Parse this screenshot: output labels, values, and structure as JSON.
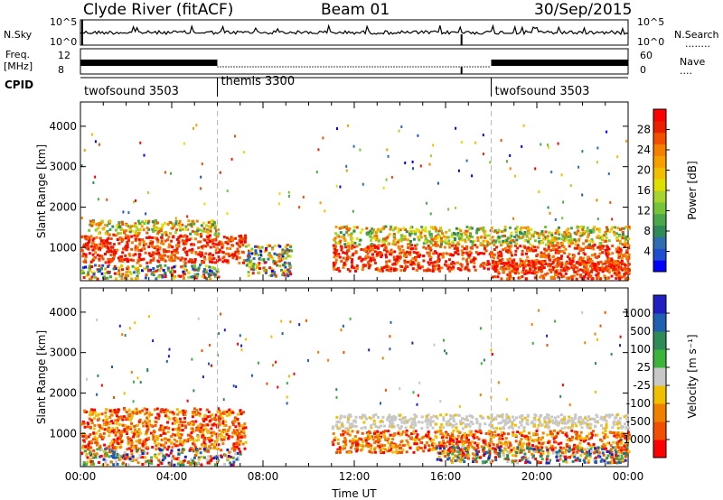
{
  "header": {
    "station": "Clyde River (fitACF)",
    "beam": "Beam 01",
    "date": "30/Sep/2015"
  },
  "strips": {
    "nsky": {
      "label": "N.Sky",
      "ticks_left": [
        "10^5",
        "10^0"
      ],
      "ticks_right": [
        "10^5",
        "10^0"
      ],
      "right_label": "N.Search",
      "right_line": "........"
    },
    "freq": {
      "label_top": "Freq.",
      "label_unit": "[MHz]",
      "ticks_left": [
        "12",
        "8"
      ],
      "ticks_right": [
        "60",
        "0"
      ],
      "right_label": "Nave",
      "right_line": "...."
    },
    "cpid": {
      "label": "CPID",
      "modes": [
        {
          "name": "twofsound 3503",
          "start_h": 0
        },
        {
          "name": "themis 3300",
          "start_h": 6
        },
        {
          "name": "twofsound 3503",
          "start_h": 18
        }
      ]
    }
  },
  "chart_data": [
    {
      "type": "heatmap",
      "title": "",
      "ylabel": "Slant Range [km]",
      "xlabel": "",
      "ylim": [
        180,
        4600
      ],
      "xlim": [
        0,
        24
      ],
      "yticks": [
        "1000",
        "2000",
        "3000",
        "4000"
      ],
      "mode_change_lines_h": [
        6,
        18
      ],
      "colorbar": {
        "label": "Power [dB]",
        "ticks": [
          "4",
          "8",
          "12",
          "16",
          "20",
          "24",
          "28"
        ],
        "colors": [
          "#0000ff",
          "#1f4fd0",
          "#2f6db0",
          "#2e8b57",
          "#4aa84a",
          "#77c43b",
          "#a8d432",
          "#e0e000",
          "#f0c000",
          "#f5a000",
          "#f57f00",
          "#f05000",
          "#e82000",
          "#ff0000"
        ]
      },
      "scatter_bands": [
        {
          "h0": 0.0,
          "h1": 7.2,
          "r0": 650,
          "r1": 1350,
          "value": "strong"
        },
        {
          "h0": 0.3,
          "h1": 6.0,
          "r0": 1350,
          "r1": 1700,
          "value": "medium"
        },
        {
          "h0": 0.0,
          "h1": 6.0,
          "r0": 250,
          "r1": 600,
          "value": "mixed"
        },
        {
          "h0": 7.2,
          "h1": 9.2,
          "r0": 300,
          "r1": 1100,
          "value": "mixed"
        },
        {
          "h0": 11.0,
          "h1": 24.0,
          "r0": 450,
          "r1": 1100,
          "value": "strong"
        },
        {
          "h0": 11.0,
          "h1": 24.0,
          "r0": 1100,
          "r1": 1550,
          "value": "medium"
        },
        {
          "h0": 18.0,
          "h1": 24.0,
          "r0": 250,
          "r1": 700,
          "value": "strong"
        }
      ]
    },
    {
      "type": "heatmap",
      "title": "",
      "ylabel": "Slant Range [km]",
      "xlabel": "Time UT",
      "ylim": [
        180,
        4600
      ],
      "xlim": [
        0,
        24
      ],
      "yticks": [
        "1000",
        "2000",
        "3000",
        "4000"
      ],
      "xticks": [
        "00:00",
        "04:00",
        "08:00",
        "12:00",
        "16:00",
        "20:00",
        "00:00"
      ],
      "mode_change_lines_h": [
        6,
        18
      ],
      "colorbar": {
        "label": "Velocity [m s⁻¹]",
        "ticks": [
          "1000",
          "500",
          "100",
          "25",
          "-25",
          "-100",
          "-500",
          "-1000"
        ],
        "colors": [
          "#2020c0",
          "#2060b0",
          "#2e8b57",
          "#3cb43c",
          "#c8c8c8",
          "#f0c000",
          "#f08000",
          "#f05000",
          "#ff0000"
        ]
      },
      "scatter_bands": [
        {
          "h0": 0.0,
          "h1": 7.2,
          "r0": 650,
          "r1": 1650,
          "value": "negative"
        },
        {
          "h0": 0.0,
          "h1": 7.0,
          "r0": 250,
          "r1": 650,
          "value": "mixed"
        },
        {
          "h0": 11.0,
          "h1": 24.0,
          "r0": 1150,
          "r1": 1500,
          "value": "near-zero"
        },
        {
          "h0": 11.0,
          "h1": 24.0,
          "r0": 550,
          "r1": 1100,
          "value": "negative"
        },
        {
          "h0": 15.5,
          "h1": 24.0,
          "r0": 300,
          "r1": 700,
          "value": "mixed"
        }
      ]
    }
  ]
}
